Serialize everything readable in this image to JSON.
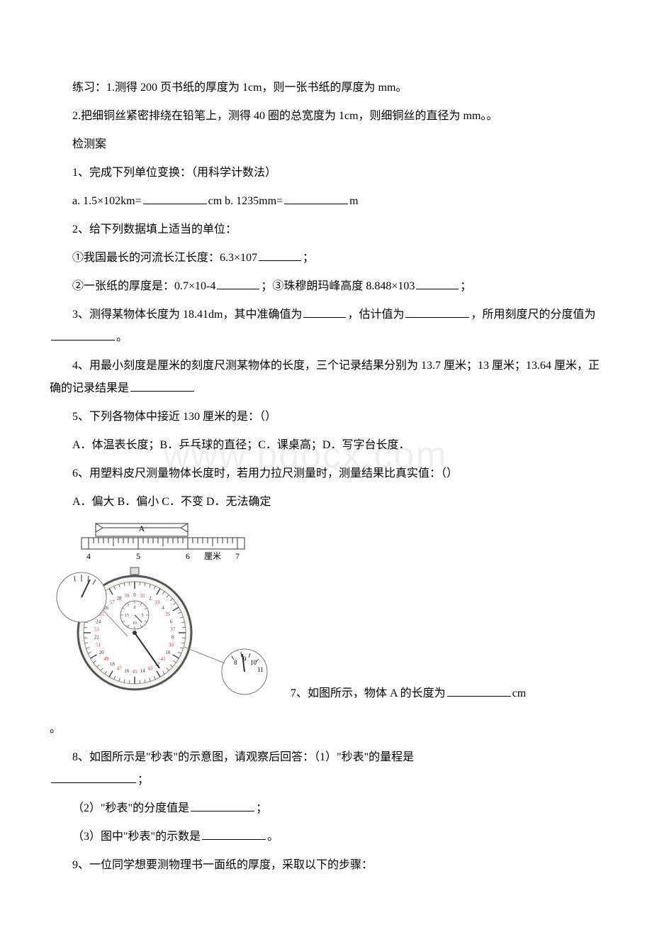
{
  "watermark": "www.bdocx.com",
  "p1": "练习：1.测得 200 页书纸的厚度为 1cm，则一张书纸的厚度为  mm。",
  "p2": "2.把细铜丝紧密排绕在铅笔上，测得 40 圈的总宽度为 1cm，则细铜丝的直径为  mm。。",
  "p3": "检测案",
  "p4": "1、完成下列单位变换：（用科学计数法）",
  "p5a": "a. 1.5×102km=",
  "p5b": "cm b. 1235mm=",
  "p5c": "m",
  "p6": "2、给下列数据填上适当的单位：",
  "p7a": "①我国最长的河流长江长度：6.3×107",
  "p7b": "；",
  "p8a": "②一张纸的厚度是：0.7×10-4",
  "p8b": "；③珠穆朗玛峰高度 8.848×103",
  "p8c": "；",
  "p9a": "3、测得某物体长度为 18.41dm，其中准确值为",
  "p9b": "，估计值为",
  "p9c": "，所用刻度尺的分度值为",
  "p9d": "。",
  "p10a": "4、用最小刻度是厘米的刻度尺测某物体的长度，三个记录结果分别为 13.7 厘米；13 厘米；13.64 厘米，正确的记录结果是",
  "p11": "5、下列各物体中接近 130 厘米的是：（）",
  "p12": "A．体温表长度；B．乒乓球的直径；C．课桌高；D．写字台长度．",
  "p13": "6、用塑料皮尺测量物体长度时，若用力拉尺测量时，测量结果比真实值：（）",
  "p14": "A．偏大 B．偏小 C．不变 D．无法确定",
  "p15a": "7、如图所示，物体 A 的长度为",
  "p15b": "cm",
  "p15c": "。",
  "p16a": "8、如图所示是\"秒表\"的示意图，请观察后回答：（1）\"秒表\"的量程是",
  "p16b": "；",
  "p17a": "（2）\"秒表\"的分度值是",
  "p17b": "；",
  "p18a": "（3）图中\"秒表\"的示数是",
  "p18b": "。",
  "p19": "9、一位同学想要测物理书一面纸的厚度，采取以下的步骤：",
  "ruler": {
    "labels": [
      "4",
      "5",
      "6",
      "厘米",
      "7"
    ],
    "objectLabel": "A"
  },
  "stopwatch": {
    "bigDialNumbers": [
      "0",
      "31",
      "2",
      "33",
      "4",
      "35",
      "6",
      "37",
      "8",
      "39",
      "10",
      "41",
      "12",
      "43",
      "14",
      "45",
      "16",
      "47",
      "18",
      "49",
      "20",
      "51",
      "22",
      "53",
      "24",
      "55",
      "26",
      "57",
      "28",
      "59"
    ],
    "smallNumbers": [
      "0",
      "5",
      "10",
      "15"
    ],
    "zoomNumbers": [
      "8",
      "9",
      "10",
      "11"
    ]
  },
  "style": {
    "textColor": "#000000",
    "bg": "#ffffff",
    "watermarkColor": "#efefef",
    "rulerStroke": "#333333",
    "dialStroke": "#444444",
    "redNum": "#c83232"
  }
}
